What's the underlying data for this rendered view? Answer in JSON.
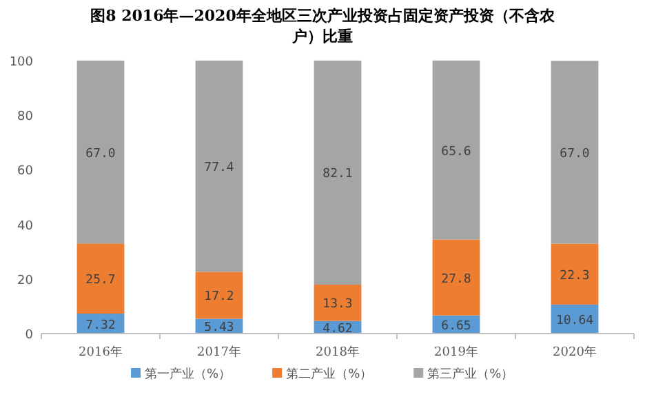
{
  "chart_data": {
    "type": "bar",
    "stacked": true,
    "title": "图8  2016年—2020年全地区三次产业投资占固定资产投资（不含农户）比重",
    "categories": [
      "2016年",
      "2017年",
      "2018年",
      "2019年",
      "2020年"
    ],
    "series": [
      {
        "name": "第一产业（%）",
        "color": "#5b9bd5",
        "values": [
          7.32,
          5.43,
          4.62,
          6.65,
          10.64
        ],
        "value_labels": [
          "7.32",
          "5.43",
          "4.62",
          "6.65",
          "10.64"
        ]
      },
      {
        "name": "第二产业（%）",
        "color": "#ed7d31",
        "values": [
          25.7,
          17.2,
          13.3,
          27.8,
          22.3
        ],
        "value_labels": [
          "25.7",
          "17.2",
          "13.3",
          "27.8",
          "22.3"
        ]
      },
      {
        "name": "第三产业（%）",
        "color": "#a5a5a5",
        "values": [
          67.0,
          77.4,
          82.1,
          65.6,
          67.0
        ],
        "value_labels": [
          "67.0",
          "77.4",
          "82.1",
          "65.6",
          "67.0"
        ]
      }
    ],
    "ylim": [
      0,
      100
    ],
    "yticks": [
      0,
      20,
      40,
      60,
      80,
      100
    ],
    "grid": false,
    "legend": "bottom"
  }
}
